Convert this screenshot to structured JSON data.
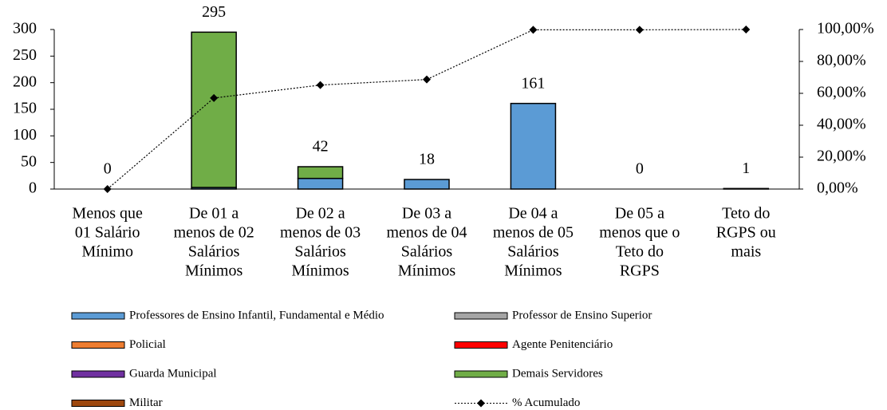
{
  "chart_data": {
    "type": "bar",
    "stacked": true,
    "categories": [
      [
        "Menos que",
        "01 Salário",
        "Mínimo"
      ],
      [
        "De 01 a",
        "menos de 02",
        "Salários",
        "Mínimos"
      ],
      [
        "De 02 a",
        "menos de 03",
        "Salários",
        "Mínimos"
      ],
      [
        "De 03 a",
        "menos de 04",
        "Salários",
        "Mínimos"
      ],
      [
        "De 04 a",
        "menos de 05",
        "Salários",
        "Mínimos"
      ],
      [
        "De 05 a",
        "menos que o",
        "Teto do",
        "RGPS"
      ],
      [
        "Teto do",
        "RGPS ou",
        "mais"
      ]
    ],
    "series": [
      {
        "name": "Professores de Ensino Infantil, Fundamental e Médio",
        "color": "#5b9bd5",
        "values": [
          0,
          3,
          20,
          18,
          161,
          0,
          1
        ]
      },
      {
        "name": "Professor de Ensino Superior",
        "color": "#a5a5a5",
        "values": [
          0,
          0,
          0,
          0,
          0,
          0,
          0
        ]
      },
      {
        "name": "Policial",
        "color": "#ed7d31",
        "values": [
          0,
          0,
          0,
          0,
          0,
          0,
          0
        ]
      },
      {
        "name": "Agente Penitenciário",
        "color": "#ff0000",
        "values": [
          0,
          0,
          0,
          0,
          0,
          0,
          0
        ]
      },
      {
        "name": "Guarda Municipal",
        "color": "#7030a0",
        "values": [
          0,
          0,
          0,
          0,
          0,
          0,
          0
        ]
      },
      {
        "name": "Demais Servidores",
        "color": "#70ad47",
        "values": [
          0,
          292,
          22,
          0,
          0,
          0,
          0
        ]
      },
      {
        "name": "Militar",
        "color": "#9e480e",
        "values": [
          0,
          0,
          0,
          0,
          0,
          0,
          0
        ]
      },
      {
        "name": "% Acumulado",
        "type": "line",
        "axis": "y2",
        "color": "#000000",
        "values": [
          0,
          57.06,
          65.18,
          68.67,
          99.81,
          99.81,
          100
        ]
      }
    ],
    "totals": [
      0,
      295,
      42,
      18,
      161,
      0,
      1
    ],
    "ylim": [
      0,
      300
    ],
    "yticks": [
      0,
      50,
      100,
      150,
      200,
      250,
      300
    ],
    "y2lim": [
      0,
      100
    ],
    "y2ticks": [
      {
        "value": 0,
        "label": "0,00%"
      },
      {
        "value": 20,
        "label": "20,00%"
      },
      {
        "value": 40,
        "label": "40,00%"
      },
      {
        "value": 60,
        "label": "60,00%"
      },
      {
        "value": 80,
        "label": "80,00%"
      },
      {
        "value": 100,
        "label": "100,00%"
      }
    ],
    "legend": "bottom"
  }
}
